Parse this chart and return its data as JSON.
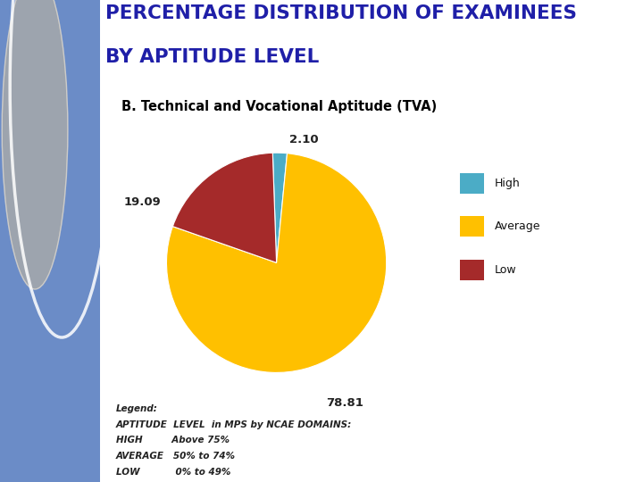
{
  "title_line1": "PERCENTAGE DISTRIBUTION OF EXAMINEES",
  "title_line2": "BY APTITUDE LEVEL",
  "subtitle": "B. Technical and Vocational Aptitude (TVA)",
  "slices": [
    2.1,
    78.81,
    19.09
  ],
  "labels": [
    "High",
    "Average",
    "Low"
  ],
  "colors": [
    "#4BACC6",
    "#FFC000",
    "#A52A2A"
  ],
  "label_values": [
    "2.10",
    "78.81",
    "19.09"
  ],
  "title_color": "#1F1FA8",
  "subtitle_color": "#000000",
  "background_color": "#FFFFFF",
  "left_panel_color": "#6B8CC7",
  "legend_labels": [
    "High",
    "Average",
    "Low"
  ],
  "legend_colors": [
    "#4BACC6",
    "#FFC000",
    "#A52A2A"
  ],
  "footnote_lines": [
    "Legend:",
    "APTITUDE  LEVEL  in MPS by NCAE DOMAINS:",
    "HIGH         Above 75%",
    "AVERAGE   50% to 74%",
    "LOW           0% to 49%"
  ],
  "startangle": 92
}
